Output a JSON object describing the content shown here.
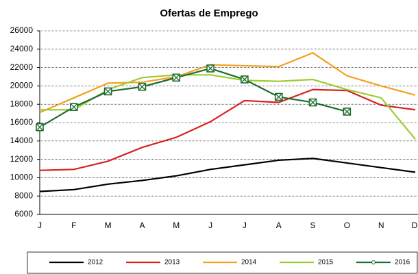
{
  "chart_data": {
    "type": "line",
    "title": "Ofertas de Emprego",
    "categories": [
      "J",
      "F",
      "M",
      "A",
      "M",
      "J",
      "J",
      "A",
      "S",
      "O",
      "N",
      "D"
    ],
    "series": [
      {
        "name": "2012",
        "color": "#000000",
        "values": [
          8500,
          8700,
          9300,
          9700,
          10200,
          10900,
          11400,
          11900,
          12100,
          11600,
          11100,
          10600
        ]
      },
      {
        "name": "2013",
        "color": "#d9201e",
        "values": [
          10800,
          10900,
          11800,
          13300,
          14400,
          16100,
          18400,
          18200,
          19600,
          19500,
          17900,
          17400
        ]
      },
      {
        "name": "2014",
        "color": "#f5a01e",
        "values": [
          17100,
          18700,
          20300,
          20400,
          21000,
          22300,
          22200,
          22100,
          23600,
          21100,
          20000,
          19000
        ]
      },
      {
        "name": "2015",
        "color": "#9acd32",
        "values": [
          17400,
          17400,
          19600,
          20900,
          21200,
          21200,
          20600,
          20500,
          20700,
          19600,
          18700,
          14200
        ]
      },
      {
        "name": "2016",
        "color": "#1e6b2e",
        "values": [
          15500,
          17700,
          19400,
          19900,
          20900,
          21900,
          20700,
          18800,
          18200,
          17200,
          null,
          null
        ]
      }
    ],
    "ylim": [
      6000,
      26000
    ],
    "yticks": [
      6000,
      8000,
      10000,
      12000,
      14000,
      16000,
      18000,
      20000,
      22000,
      24000,
      26000
    ],
    "grid": true
  }
}
